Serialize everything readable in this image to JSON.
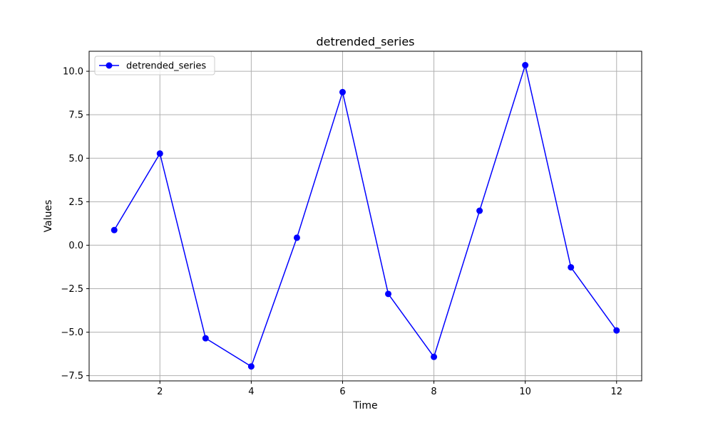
{
  "chart_data": {
    "type": "line",
    "title": "detrended_series",
    "xlabel": "Time",
    "ylabel": "Values",
    "xlim": [
      0.45,
      12.55
    ],
    "ylim": [
      -7.8,
      11.15
    ],
    "xticks": [
      2,
      4,
      6,
      8,
      10,
      12
    ],
    "xtick_labels": [
      "2",
      "4",
      "6",
      "8",
      "10",
      "12"
    ],
    "yticks": [
      -7.5,
      -5.0,
      -2.5,
      0.0,
      2.5,
      5.0,
      7.5,
      10.0
    ],
    "ytick_labels": [
      "−7.5",
      "−5.0",
      "−2.5",
      "0.0",
      "2.5",
      "5.0",
      "7.5",
      "10.0"
    ],
    "grid": true,
    "legend_position": "top-left",
    "series": [
      {
        "name": "detrended_series",
        "color": "#0000ff",
        "marker": "circle",
        "x": [
          1,
          2,
          3,
          4,
          5,
          6,
          7,
          8,
          9,
          10,
          11,
          12
        ],
        "y": [
          0.87,
          5.27,
          -5.35,
          -6.97,
          0.43,
          8.8,
          -2.8,
          -6.42,
          1.98,
          10.35,
          -1.27,
          -4.9
        ]
      }
    ]
  }
}
